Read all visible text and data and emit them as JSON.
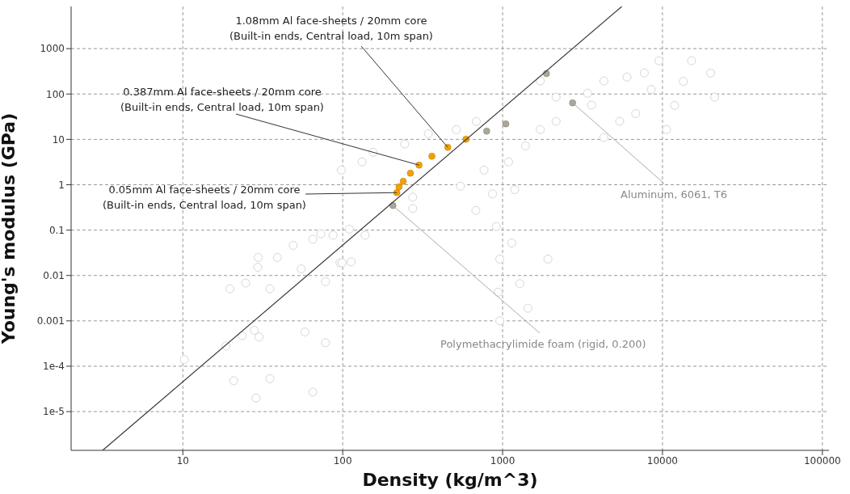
{
  "chart_data": {
    "type": "scatter",
    "xlabel": "Density (kg/m^3)",
    "ylabel": "Young's modulus (GPa)",
    "log": "xy",
    "grid": true,
    "legend": false,
    "marker": "circle",
    "xlim": [
      2,
      110000
    ],
    "xticks": [
      10,
      100,
      1000,
      10000,
      100000
    ],
    "ylim": [
      1.4e-06,
      8500
    ],
    "yticks": [
      {
        "value": 1e-05,
        "label": "1e-5"
      },
      {
        "value": 0.0001,
        "label": "1e-4"
      },
      0.001,
      0.01,
      0.1,
      1,
      10,
      100,
      1000
    ],
    "series": [
      {
        "color": "#d6d6d6",
        "x": [
          10.2,
          19.7,
          24.7,
          35,
          29.4,
          29.6,
          39,
          49,
          65,
          73,
          87,
          110,
          138,
          113,
          96,
          78,
          55,
          28,
          23.5,
          18.6,
          20.8,
          28.7,
          35,
          65,
          78,
          58,
          30,
          99,
          274,
          274,
          98,
          132,
          155,
          244,
          343,
          514,
          685,
          912,
          960,
          940,
          960,
          1140,
          1280,
          1440,
          1920,
          680,
          545,
          765,
          1090,
          1390,
          1720,
          2160,
          1190,
          865,
          4300,
          6000,
          8500,
          11900,
          13500,
          15200,
          20000,
          21200,
          10600,
          9500,
          5400,
          4300,
          3400,
          3600,
          6800,
          7700,
          2160,
          1720
        ],
        "values": [
          0.00014,
          0.0051,
          0.0068,
          0.0051,
          0.0152,
          0.025,
          0.025,
          0.046,
          0.063,
          0.083,
          0.077,
          0.105,
          0.077,
          0.02,
          0.019,
          0.0073,
          0.014,
          0.00062,
          0.00047,
          0.00028,
          4.8e-05,
          2e-05,
          5.3e-05,
          2.7e-05,
          0.00033,
          0.00057,
          0.00044,
          0.019,
          0.53,
          0.3,
          2.1,
          3.2,
          5.2,
          7.9,
          13.4,
          16.4,
          24.9,
          0.12,
          0.023,
          0.0043,
          0.001,
          0.052,
          0.0066,
          0.0019,
          0.023,
          0.27,
          0.93,
          2.1,
          3.2,
          7.2,
          16.5,
          25,
          0.78,
          0.63,
          194,
          236,
          126,
          56,
          190,
          540,
          290,
          85,
          16.5,
          540,
          25,
          11,
          104,
          57,
          37,
          291,
          85,
          194
        ]
      },
      {
        "color": "#a6a6a6",
        "x": [
          206,
          795,
          1047,
          2740,
          1880
        ],
        "values": [
          0.348,
          15.2,
          22,
          64,
          281
        ]
      },
      {
        "color": "#f5a000",
        "x": [
          218,
          225,
          239,
          265,
          300,
          361,
          454,
          590
        ],
        "values": [
          0.67,
          0.9,
          1.19,
          1.8,
          2.71,
          4.26,
          6.68,
          10.1
        ]
      },
      {
        "type": "line",
        "color": "#333333",
        "marker": "none",
        "x": [
          3.15,
          5570
        ],
        "values": [
          1.4e-06,
          8500
        ]
      }
    ],
    "annotations": [
      {
        "text": "1.08mm Al face-sheets / 20mm core\n(Built-in ends, Central load, 10m span)",
        "x": 454,
        "y": 6.68
      },
      {
        "text": "0.387mm Al face-sheets / 20mm core\n(Built-in ends, Central load, 10m span)",
        "x": 300,
        "y": 2.71
      },
      {
        "text": "0.05mm Al face-sheets / 20mm core\n(Built-in ends, Central load, 10m span)",
        "x": 218,
        "y": 0.67
      },
      {
        "text": "Aluminum, 6061, T6",
        "x": 2740,
        "y": 64
      },
      {
        "text": "Polymethacrylimide foam (rigid, 0.200)",
        "x": 206,
        "y": 0.348
      }
    ]
  }
}
